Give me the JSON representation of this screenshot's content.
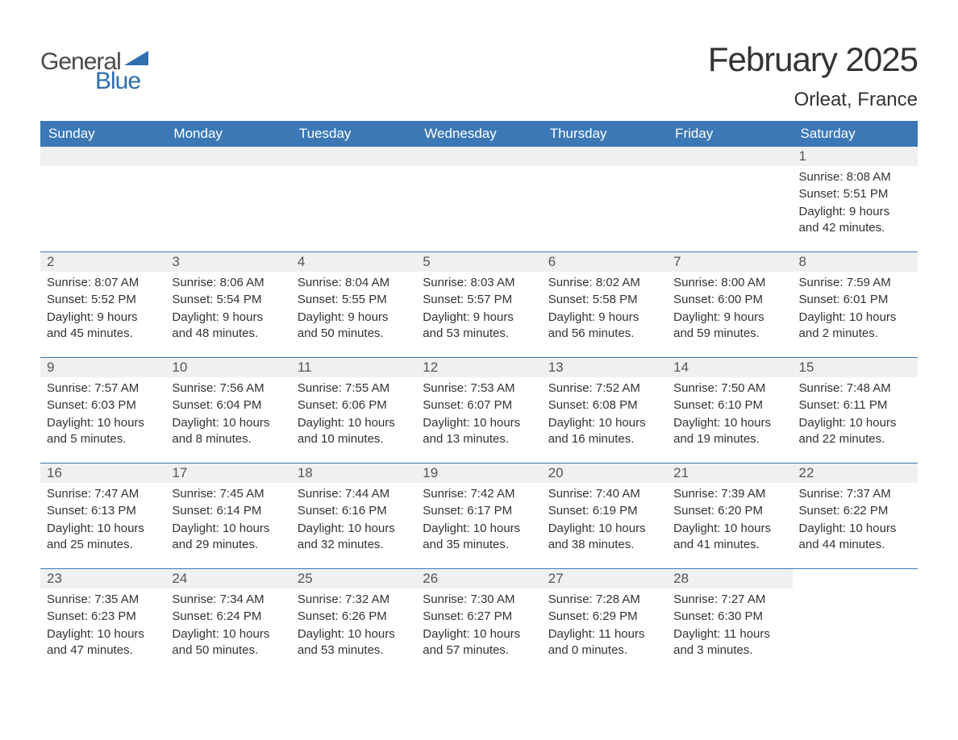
{
  "logo": {
    "general": "General",
    "blue": "Blue"
  },
  "title": "February 2025",
  "location": "Orleat, France",
  "colors": {
    "header_bg": "#3b78b5",
    "header_text": "#ffffff",
    "daynum_bg": "#f0f0f0",
    "text": "#333333",
    "logo_gray": "#4a4a4a",
    "logo_blue": "#2f6fb0",
    "week_border": "#3b78b5"
  },
  "typography": {
    "title_fontsize": 42,
    "location_fontsize": 24,
    "dayheader_fontsize": 17,
    "daynum_fontsize": 17,
    "detail_fontsize": 15,
    "font_family": "Arial"
  },
  "day_names": [
    "Sunday",
    "Monday",
    "Tuesday",
    "Wednesday",
    "Thursday",
    "Friday",
    "Saturday"
  ],
  "weeks": [
    [
      null,
      null,
      null,
      null,
      null,
      null,
      {
        "n": "1",
        "sunrise": "Sunrise: 8:08 AM",
        "sunset": "Sunset: 5:51 PM",
        "daylight": "Daylight: 9 hours and 42 minutes."
      }
    ],
    [
      {
        "n": "2",
        "sunrise": "Sunrise: 8:07 AM",
        "sunset": "Sunset: 5:52 PM",
        "daylight": "Daylight: 9 hours and 45 minutes."
      },
      {
        "n": "3",
        "sunrise": "Sunrise: 8:06 AM",
        "sunset": "Sunset: 5:54 PM",
        "daylight": "Daylight: 9 hours and 48 minutes."
      },
      {
        "n": "4",
        "sunrise": "Sunrise: 8:04 AM",
        "sunset": "Sunset: 5:55 PM",
        "daylight": "Daylight: 9 hours and 50 minutes."
      },
      {
        "n": "5",
        "sunrise": "Sunrise: 8:03 AM",
        "sunset": "Sunset: 5:57 PM",
        "daylight": "Daylight: 9 hours and 53 minutes."
      },
      {
        "n": "6",
        "sunrise": "Sunrise: 8:02 AM",
        "sunset": "Sunset: 5:58 PM",
        "daylight": "Daylight: 9 hours and 56 minutes."
      },
      {
        "n": "7",
        "sunrise": "Sunrise: 8:00 AM",
        "sunset": "Sunset: 6:00 PM",
        "daylight": "Daylight: 9 hours and 59 minutes."
      },
      {
        "n": "8",
        "sunrise": "Sunrise: 7:59 AM",
        "sunset": "Sunset: 6:01 PM",
        "daylight": "Daylight: 10 hours and 2 minutes."
      }
    ],
    [
      {
        "n": "9",
        "sunrise": "Sunrise: 7:57 AM",
        "sunset": "Sunset: 6:03 PM",
        "daylight": "Daylight: 10 hours and 5 minutes."
      },
      {
        "n": "10",
        "sunrise": "Sunrise: 7:56 AM",
        "sunset": "Sunset: 6:04 PM",
        "daylight": "Daylight: 10 hours and 8 minutes."
      },
      {
        "n": "11",
        "sunrise": "Sunrise: 7:55 AM",
        "sunset": "Sunset: 6:06 PM",
        "daylight": "Daylight: 10 hours and 10 minutes."
      },
      {
        "n": "12",
        "sunrise": "Sunrise: 7:53 AM",
        "sunset": "Sunset: 6:07 PM",
        "daylight": "Daylight: 10 hours and 13 minutes."
      },
      {
        "n": "13",
        "sunrise": "Sunrise: 7:52 AM",
        "sunset": "Sunset: 6:08 PM",
        "daylight": "Daylight: 10 hours and 16 minutes."
      },
      {
        "n": "14",
        "sunrise": "Sunrise: 7:50 AM",
        "sunset": "Sunset: 6:10 PM",
        "daylight": "Daylight: 10 hours and 19 minutes."
      },
      {
        "n": "15",
        "sunrise": "Sunrise: 7:48 AM",
        "sunset": "Sunset: 6:11 PM",
        "daylight": "Daylight: 10 hours and 22 minutes."
      }
    ],
    [
      {
        "n": "16",
        "sunrise": "Sunrise: 7:47 AM",
        "sunset": "Sunset: 6:13 PM",
        "daylight": "Daylight: 10 hours and 25 minutes."
      },
      {
        "n": "17",
        "sunrise": "Sunrise: 7:45 AM",
        "sunset": "Sunset: 6:14 PM",
        "daylight": "Daylight: 10 hours and 29 minutes."
      },
      {
        "n": "18",
        "sunrise": "Sunrise: 7:44 AM",
        "sunset": "Sunset: 6:16 PM",
        "daylight": "Daylight: 10 hours and 32 minutes."
      },
      {
        "n": "19",
        "sunrise": "Sunrise: 7:42 AM",
        "sunset": "Sunset: 6:17 PM",
        "daylight": "Daylight: 10 hours and 35 minutes."
      },
      {
        "n": "20",
        "sunrise": "Sunrise: 7:40 AM",
        "sunset": "Sunset: 6:19 PM",
        "daylight": "Daylight: 10 hours and 38 minutes."
      },
      {
        "n": "21",
        "sunrise": "Sunrise: 7:39 AM",
        "sunset": "Sunset: 6:20 PM",
        "daylight": "Daylight: 10 hours and 41 minutes."
      },
      {
        "n": "22",
        "sunrise": "Sunrise: 7:37 AM",
        "sunset": "Sunset: 6:22 PM",
        "daylight": "Daylight: 10 hours and 44 minutes."
      }
    ],
    [
      {
        "n": "23",
        "sunrise": "Sunrise: 7:35 AM",
        "sunset": "Sunset: 6:23 PM",
        "daylight": "Daylight: 10 hours and 47 minutes."
      },
      {
        "n": "24",
        "sunrise": "Sunrise: 7:34 AM",
        "sunset": "Sunset: 6:24 PM",
        "daylight": "Daylight: 10 hours and 50 minutes."
      },
      {
        "n": "25",
        "sunrise": "Sunrise: 7:32 AM",
        "sunset": "Sunset: 6:26 PM",
        "daylight": "Daylight: 10 hours and 53 minutes."
      },
      {
        "n": "26",
        "sunrise": "Sunrise: 7:30 AM",
        "sunset": "Sunset: 6:27 PM",
        "daylight": "Daylight: 10 hours and 57 minutes."
      },
      {
        "n": "27",
        "sunrise": "Sunrise: 7:28 AM",
        "sunset": "Sunset: 6:29 PM",
        "daylight": "Daylight: 11 hours and 0 minutes."
      },
      {
        "n": "28",
        "sunrise": "Sunrise: 7:27 AM",
        "sunset": "Sunset: 6:30 PM",
        "daylight": "Daylight: 11 hours and 3 minutes."
      },
      null
    ]
  ]
}
